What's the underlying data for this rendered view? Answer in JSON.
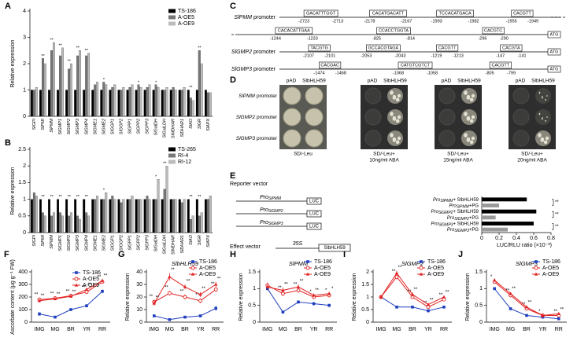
{
  "chart_data": [
    {
      "type": "bar",
      "panel": "A",
      "ylabel": "Relative expression",
      "categories": [
        "SlGPI",
        "SlPMI",
        "SlPMM",
        "SlGMP1",
        "SlGMP2",
        "SlGMP3",
        "SlGMP4",
        "SlGME1",
        "SlGME2",
        "SlGGP1",
        "SlGGP2",
        "SlGPP1",
        "SlGPP2",
        "SlGPP3",
        "SlGalDH",
        "SlGalLDH",
        "SlMDHAR",
        "SlDHAR1",
        "SlAO",
        "SlGR",
        "SlAPX"
      ],
      "series": [
        {
          "name": "TS-186",
          "color": "#000000",
          "values": [
            1,
            1,
            1,
            1,
            1,
            1,
            1,
            1,
            1,
            1,
            1,
            1,
            1,
            1,
            1,
            1,
            1,
            1,
            1,
            1,
            1
          ]
        },
        {
          "name": "A-OE5",
          "color": "#777777",
          "values": [
            1.0,
            2.2,
            2.5,
            2.3,
            1.8,
            2.3,
            2.3,
            1.2,
            1.3,
            1.1,
            1.0,
            1.1,
            1.2,
            1.1,
            1.2,
            1.0,
            1.1,
            1.0,
            0.7,
            2.5,
            0.9
          ]
        },
        {
          "name": "A-OE9",
          "color": "#bbbbbb",
          "values": [
            1.1,
            2.0,
            2.8,
            2.6,
            2.0,
            2.5,
            2.4,
            1.3,
            1.2,
            1.2,
            1.1,
            1.2,
            1.1,
            1.2,
            1.1,
            1.1,
            1.0,
            1.1,
            0.6,
            2.0,
            0.9
          ]
        }
      ],
      "marks": [
        null,
        "**",
        "**",
        "**",
        "**",
        "**",
        "**",
        null,
        "*",
        null,
        null,
        null,
        "*",
        null,
        "*",
        null,
        null,
        null,
        "**",
        "**",
        null
      ],
      "ylim": [
        0,
        4
      ],
      "yticks": [
        0,
        1,
        2,
        3,
        4
      ]
    },
    {
      "type": "bar",
      "panel": "B",
      "ylabel": "Relative expression",
      "categories": [
        "SlGPI",
        "SlPMI",
        "SlPMM",
        "SlGMP1",
        "SlGMP2",
        "SlGMP3",
        "SlGMP4",
        "SlGME1",
        "SlGME2",
        "SlGGP1",
        "SlGGP2",
        "SlGPP1",
        "SlGPP2",
        "SlGPP3",
        "SlGalDH",
        "SlGalLDH",
        "SlMDHAR",
        "SlDHAR1",
        "SlAO",
        "SlGR",
        "SlAPX"
      ],
      "series": [
        {
          "name": "TS-265",
          "color": "#000000",
          "values": [
            1,
            1,
            1,
            1,
            1,
            1,
            1,
            1,
            1,
            1,
            1,
            1,
            1,
            1,
            1,
            1,
            1,
            1,
            1,
            1,
            1
          ]
        },
        {
          "name": "RI-4",
          "color": "#777777",
          "values": [
            1.2,
            0.6,
            0.5,
            0.6,
            0.5,
            0.5,
            0.6,
            1.0,
            1.0,
            1.1,
            0.9,
            1.0,
            1.0,
            1.1,
            1.0,
            1.3,
            1.0,
            0.9,
            0.4,
            0.5,
            1.0
          ]
        },
        {
          "name": "RI-12",
          "color": "#bbbbbb",
          "values": [
            1.1,
            0.5,
            0.6,
            0.5,
            0.6,
            0.4,
            0.5,
            1.1,
            1.2,
            1.0,
            1.0,
            1.1,
            1.0,
            1.0,
            1.6,
            2.0,
            1.0,
            1.0,
            0.5,
            0.6,
            1.1
          ]
        }
      ],
      "marks": [
        null,
        "**",
        "**",
        "**",
        "**",
        "**",
        "**",
        null,
        "*",
        null,
        null,
        null,
        null,
        null,
        "*",
        "**",
        null,
        null,
        "**",
        "**",
        null
      ],
      "ylim": [
        0,
        2.5
      ],
      "yticks": [
        0,
        0.5,
        1,
        1.5,
        2,
        2.5
      ]
    },
    {
      "type": "hbar",
      "panel": "E",
      "categories": [
        {
          "base": "Pro",
          "sub": "SlPMM",
          "suffix": "+ SlbHLH59"
        },
        {
          "base": "Pro",
          "sub": "SlPMM",
          "suffix": "+PG"
        },
        {
          "base": "Pro",
          "sub": "SlGMP2",
          "suffix": "+ SlbHLH59"
        },
        {
          "base": "Pro",
          "sub": "SlGMP2",
          "suffix": "+PG"
        },
        {
          "base": "Pro",
          "sub": "SlGMP3",
          "suffix": "+ SlbHLH59"
        },
        {
          "base": "Pro",
          "sub": "SlGMP3",
          "suffix": "+PG"
        }
      ],
      "values": [
        0.52,
        0.2,
        0.63,
        0.16,
        0.6,
        0.3
      ],
      "colors": [
        "#000000",
        "#999999",
        "#000000",
        "#999999",
        "#000000",
        "#999999"
      ],
      "significance": [
        "**",
        "**",
        "**"
      ],
      "xlabel": "LUC/RLU ratio (×10⁻²)",
      "xlim": [
        0,
        0.8
      ],
      "xticks": [
        0,
        0.2,
        0.4,
        0.6,
        0.8
      ],
      "reporter_label": "Reporter vector",
      "reporters": [
        {
          "base": "Pro",
          "sub": "SlPMM",
          "gene": "LUC"
        },
        {
          "base": "Pro",
          "sub": "SlGMP2",
          "gene": "LUC"
        },
        {
          "base": "Pro",
          "sub": "SlGMP3",
          "gene": "LUC"
        }
      ],
      "effector_label": "Effect vector",
      "effector": {
        "promoter": "35S",
        "gene": "SlbHLH59"
      }
    },
    {
      "type": "line",
      "panel": "F",
      "ylabel": "Ascorbate content (μg g⁻¹ FW)",
      "categories": [
        "IMG",
        "MG",
        "BR",
        "YR",
        "RR"
      ],
      "series": [
        {
          "name": "TS-186",
          "color": "#1f3fbf",
          "values": [
            65,
            40,
            100,
            130,
            245
          ],
          "errors": [
            15,
            10,
            10,
            12,
            15
          ]
        },
        {
          "name": "A-OE5",
          "color": "#e02020",
          "values": [
            180,
            190,
            210,
            240,
            320
          ],
          "errors": [
            15,
            12,
            10,
            12,
            15
          ],
          "marks": [
            "**",
            "**",
            "**",
            "**",
            "**"
          ]
        },
        {
          "name": "A-OE9",
          "color": "#e02020",
          "values": [
            170,
            185,
            205,
            260,
            330
          ],
          "errors": [
            15,
            12,
            10,
            12,
            15
          ],
          "marks": [
            "**",
            "**",
            "**",
            "**",
            "**"
          ]
        }
      ],
      "ylim": [
        0,
        400
      ],
      "yticks": [
        0,
        100,
        200,
        300,
        400
      ]
    },
    {
      "type": "line",
      "panel": "G",
      "title": "SlbHLH59",
      "ylabel": "Relative expression",
      "categories": [
        "IMG",
        "MG",
        "BR",
        "YR",
        "RR"
      ],
      "series": [
        {
          "name": "TS-186",
          "color": "#1f3fbf",
          "values": [
            5,
            2,
            4,
            5,
            11
          ],
          "errors": [
            1,
            0.5,
            1,
            1,
            2
          ]
        },
        {
          "name": "A-OE5",
          "color": "#e02020",
          "values": [
            16,
            23,
            20,
            17,
            26
          ],
          "errors": [
            2,
            2,
            2,
            2,
            2
          ],
          "marks": [
            "**",
            "**",
            "**",
            "**",
            "**"
          ]
        },
        {
          "name": "A-OE9",
          "color": "#e02020",
          "values": [
            15,
            36,
            28,
            22,
            30
          ],
          "errors": [
            2,
            3,
            2,
            2,
            2
          ],
          "marks": [
            "**",
            "**",
            "**",
            "**",
            "**"
          ]
        }
      ],
      "ylim": [
        0,
        40
      ],
      "yticks": [
        0,
        10,
        20,
        30,
        40
      ]
    },
    {
      "type": "line",
      "panel": "H",
      "title": "SlPMM",
      "ylabel": "Relative expression",
      "categories": [
        "IMG",
        "MG",
        "BR",
        "YR",
        "RR"
      ],
      "series": [
        {
          "name": "TS-186",
          "color": "#1f3fbf",
          "values": [
            1.0,
            0.3,
            0.6,
            0.55,
            0.5
          ],
          "errors": [
            0.05,
            0.03,
            0.05,
            0.05,
            0.05
          ]
        },
        {
          "name": "A-OE5",
          "color": "#e02020",
          "values": [
            1.1,
            0.85,
            0.95,
            0.75,
            0.8
          ],
          "errors": [
            0.08,
            0.08,
            0.08,
            0.06,
            0.06
          ],
          "marks": [
            null,
            "**",
            "**",
            "*",
            "*"
          ]
        },
        {
          "name": "A-OE9",
          "color": "#e02020",
          "values": [
            1.05,
            0.95,
            1.05,
            0.8,
            0.85
          ],
          "errors": [
            0.08,
            0.08,
            0.08,
            0.06,
            0.06
          ],
          "marks": [
            null,
            "**",
            "**",
            "**",
            "*"
          ]
        }
      ],
      "ylim": [
        0,
        1.5
      ],
      "yticks": [
        0,
        0.5,
        1,
        1.5
      ]
    },
    {
      "type": "line",
      "panel": "I",
      "title": "SlGMP2",
      "ylabel": "Relative expression",
      "categories": [
        "IMG",
        "MG",
        "BR",
        "YR",
        "RR"
      ],
      "series": [
        {
          "name": "TS-186",
          "color": "#1f3fbf",
          "values": [
            1.0,
            0.6,
            0.6,
            0.45,
            0.6
          ],
          "errors": [
            0.05,
            0.05,
            0.05,
            0.05,
            0.05
          ]
        },
        {
          "name": "A-OE5",
          "color": "#e02020",
          "values": [
            1.0,
            1.8,
            1.0,
            0.6,
            0.9
          ],
          "errors": [
            0.05,
            0.1,
            0.08,
            0.05,
            0.06
          ],
          "marks": [
            null,
            "**",
            "**",
            "**",
            "**"
          ]
        },
        {
          "name": "A-OE9",
          "color": "#e02020",
          "values": [
            1.0,
            1.95,
            1.1,
            0.7,
            1.0
          ],
          "errors": [
            0.05,
            0.1,
            0.08,
            0.05,
            0.06
          ],
          "marks": [
            null,
            "**",
            "**",
            "**",
            "**"
          ]
        }
      ],
      "ylim": [
        0,
        2
      ],
      "yticks": [
        0,
        0.5,
        1,
        1.5,
        2
      ]
    },
    {
      "type": "line",
      "panel": "J",
      "title": "SlGMP3",
      "ylabel": "Relative expression",
      "categories": [
        "IMG",
        "MG",
        "BR",
        "YR",
        "RR"
      ],
      "series": [
        {
          "name": "TS-186",
          "color": "#1f3fbf",
          "values": [
            1.0,
            0.4,
            0.2,
            0.15,
            0.1
          ],
          "errors": [
            0.04,
            0.03,
            0.02,
            0.02,
            0.02
          ]
        },
        {
          "name": "A-OE5",
          "color": "#e02020",
          "values": [
            1.2,
            0.8,
            0.4,
            0.2,
            0.2
          ],
          "errors": [
            0.06,
            0.05,
            0.04,
            0.03,
            0.03
          ],
          "marks": [
            "*",
            "**",
            "**",
            "*",
            "**"
          ]
        },
        {
          "name": "A-OE9",
          "color": "#e02020",
          "values": [
            1.25,
            0.85,
            0.45,
            0.2,
            0.25
          ],
          "errors": [
            0.06,
            0.05,
            0.04,
            0.03,
            0.03
          ],
          "marks": [
            null,
            "**",
            "**",
            null,
            "**"
          ]
        }
      ],
      "ylim": [
        0,
        1.5
      ],
      "yticks": [
        0,
        0.5,
        1,
        1.5
      ]
    }
  ],
  "panel_c": {
    "panel": "C",
    "promoters": [
      {
        "name": "SlPMM",
        "suffix": "promoter",
        "rows": [
          [
            {
              "seq": "GACATTTGGT",
              "start": "-2723",
              "end": "-2713"
            },
            {
              "seq": "CACATGACATT",
              "start": "-2178",
              "end": "-2167"
            },
            {
              "seq": "TCCACATGACA",
              "start": "-1993",
              "end": "-1982"
            },
            {
              "seq": "CACGTT",
              "start": "-1955",
              "end": "-1949"
            }
          ],
          [
            {
              "seq": "CACACATTGAA",
              "start": "-1244",
              "end": "-1233"
            },
            {
              "seq": "CCACCTGGTA",
              "start": "-825",
              "end": "-814"
            },
            {
              "seq": "CACGTC",
              "start": "-296",
              "end": "-290"
            }
          ]
        ],
        "end": "ATG"
      },
      {
        "name": "SlGMP2",
        "suffix": "promoter",
        "rows": [
          [
            {
              "seq": "TACGTG",
              "start": "-2107",
              "end": "-2101"
            },
            {
              "seq": "GCCACGTAGA",
              "start": "-2053",
              "end": "-2043"
            },
            {
              "seq": "CACGTT",
              "start": "-1219",
              "end": "-1213"
            },
            {
              "seq": "CACGTA",
              "start": "-147",
              "end": "-141"
            }
          ]
        ],
        "end": "ATG"
      },
      {
        "name": "SlGMP3",
        "suffix": "promoter",
        "rows": [
          [
            {
              "seq": "CACGAC",
              "start": "-1474",
              "end": "-1468"
            },
            {
              "seq": "CATGTCGTCT",
              "start": "-1068",
              "end": "-1058"
            },
            {
              "seq": "CACGTT",
              "start": "-805",
              "end": "-799"
            }
          ]
        ],
        "end": "ATG"
      }
    ]
  },
  "panel_d": {
    "panel": "D",
    "columns": [
      "pAD",
      "SlbHLH59"
    ],
    "rows": [
      {
        "name": "SlPMM",
        "suffix": "promoter"
      },
      {
        "name": "SlGMP2",
        "suffix": "promoter"
      },
      {
        "name": "SlGMP3",
        "suffix": "promoter"
      }
    ],
    "conditions": [
      [
        "SD/-Leu"
      ],
      [
        "SD/-Leu+",
        "10ng/ml ABA"
      ],
      [
        "SD/-Leu+",
        "15ng/ml ABA"
      ],
      [
        "SD/-Leu+",
        "20ng/ml ABA"
      ]
    ]
  }
}
